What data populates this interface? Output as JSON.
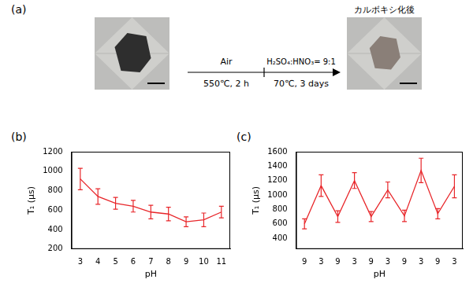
{
  "diagram": {
    "panel_label": "(a)",
    "step_above": "Air",
    "step_below": "550℃, 2 h",
    "step2_above": "H₂SO₄:HNO₃= 9:1",
    "step2_below": "70℃, 3 days",
    "after_label": "カルボキシ化後"
  },
  "chart_data": [
    {
      "panel_label": "(b)",
      "type": "line",
      "x_label": "pH",
      "y_label": "T₁ (μs)",
      "categories": [
        "3",
        "4",
        "5",
        "6",
        "7",
        "8",
        "9",
        "10",
        "11"
      ],
      "values": [
        920,
        740,
        670,
        640,
        580,
        560,
        480,
        500,
        580
      ],
      "errors": [
        110,
        80,
        60,
        60,
        70,
        70,
        50,
        70,
        60
      ],
      "color": "#e8262a",
      "ylim": [
        200,
        1200
      ],
      "yticks": [
        200,
        400,
        600,
        800,
        1000,
        1200
      ],
      "grid": false
    },
    {
      "panel_label": "(c)",
      "type": "line",
      "x_label": "pH",
      "y_label": "T₁ (μs)",
      "categories": [
        "9",
        "3",
        "9",
        "3",
        "9",
        "3",
        "9",
        "3",
        "9",
        "3"
      ],
      "values": [
        600,
        1130,
        700,
        1200,
        700,
        1070,
        710,
        1340,
        740,
        1120
      ],
      "errors": [
        70,
        150,
        80,
        110,
        70,
        110,
        80,
        170,
        70,
        160
      ],
      "color": "#e8262a",
      "ylim": [
        250,
        1600
      ],
      "yticks": [
        400,
        600,
        800,
        1000,
        1200,
        1400,
        1600
      ],
      "grid": false
    }
  ]
}
